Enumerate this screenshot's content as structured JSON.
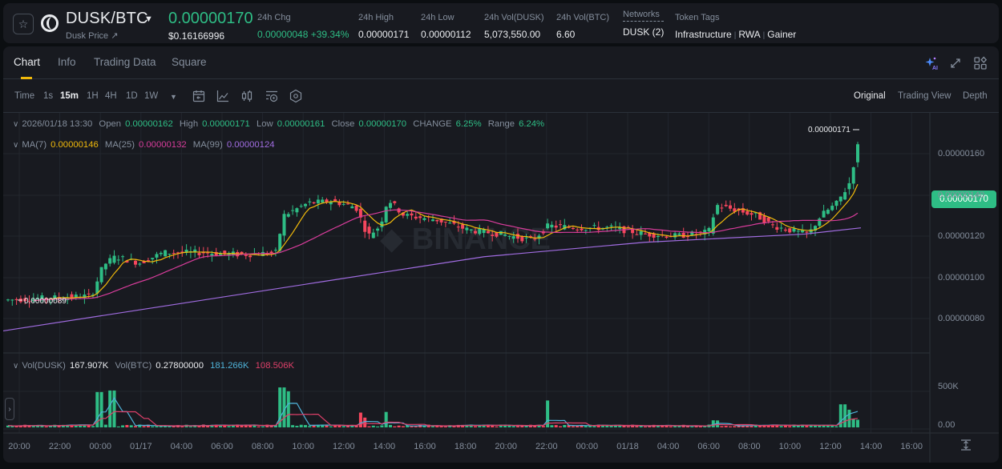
{
  "header": {
    "pair": "DUSK/BTC",
    "sub_link": "Dusk Price ↗",
    "last_price": "0.00000170",
    "last_price_usd": "$0.16166996",
    "stats": [
      {
        "label": "24h Chg",
        "value": "0.00000048 +39.34%",
        "positive": true
      },
      {
        "label": "24h High",
        "value": "0.00000171"
      },
      {
        "label": "24h Low",
        "value": "0.00000112"
      },
      {
        "label": "24h Vol(DUSK)",
        "value": "5,073,550.00"
      },
      {
        "label": "24h Vol(BTC)",
        "value": "6.60"
      },
      {
        "label": "Networks",
        "value": "DUSK (2)"
      }
    ],
    "token_tags_label": "Token Tags",
    "token_tags": [
      "Infrastructure",
      "RWA",
      "Gainer"
    ]
  },
  "tabs": [
    {
      "label": "Chart",
      "active": true
    },
    {
      "label": "Info"
    },
    {
      "label": "Trading Data"
    },
    {
      "label": "Square"
    }
  ],
  "toolbar": {
    "timeframes": [
      {
        "label": "Time"
      },
      {
        "label": "1s"
      },
      {
        "label": "15m",
        "active": true
      },
      {
        "label": "1H"
      },
      {
        "label": "4H"
      },
      {
        "label": "1D"
      },
      {
        "label": "1W"
      }
    ],
    "views": [
      {
        "label": "Original",
        "active": true
      },
      {
        "label": "Trading View"
      },
      {
        "label": "Depth"
      }
    ]
  },
  "ohlc_legend": {
    "datetime": "2026/01/18 13:30",
    "open_label": "Open",
    "open": "0.00000162",
    "high_label": "High",
    "high": "0.00000171",
    "low_label": "Low",
    "low": "0.00000161",
    "close_label": "Close",
    "close": "0.00000170",
    "change_label": "CHANGE",
    "change": "6.25%",
    "range_label": "Range",
    "range": "6.24%"
  },
  "ma_legend": {
    "ma7_label": "MA(7)",
    "ma7": "0.00000146",
    "ma25_label": "MA(25)",
    "ma25": "0.00000132",
    "ma99_label": "MA(99)",
    "ma99": "0.00000124"
  },
  "vol_legend": {
    "vol_dusk_label": "Vol(DUSK)",
    "vol_dusk": "167.907K",
    "vol_btc_label": "Vol(BTC)",
    "vol_btc": "0.27800000",
    "ma5": "181.266K",
    "ma10": "108.506K"
  },
  "colors": {
    "up": "#2ebd85",
    "down": "#f6465d",
    "ma7": "#f0b90b",
    "ma25": "#d63c9a",
    "ma99": "#a06ce0",
    "vol_ma5": "#4fb3d9",
    "vol_ma10": "#e0406a",
    "accent": "#f0b90b"
  },
  "chart_data": {
    "type": "candlestick",
    "title": "DUSK/BTC 15m",
    "y_axis": [
      "0.00000160",
      "0.00000140",
      "0.00000120",
      "0.00000100",
      "0.00000080"
    ],
    "current_price_tag": "0.00000170",
    "high_marker": "0.00000171",
    "low_marker": "0.00000089",
    "vol_axis": [
      "500K",
      "0.00"
    ],
    "x_axis": [
      "20:00",
      "22:00",
      "00:00",
      "01/17",
      "04:00",
      "06:00",
      "08:00",
      "10:00",
      "12:00",
      "14:00",
      "16:00",
      "18:00",
      "20:00",
      "22:00",
      "00:00",
      "01/18",
      "04:00",
      "06:00",
      "08:00",
      "10:00",
      "12:00",
      "14:00",
      "16:00"
    ],
    "ylim": [
      7e-07,
      1.75e-06
    ]
  }
}
